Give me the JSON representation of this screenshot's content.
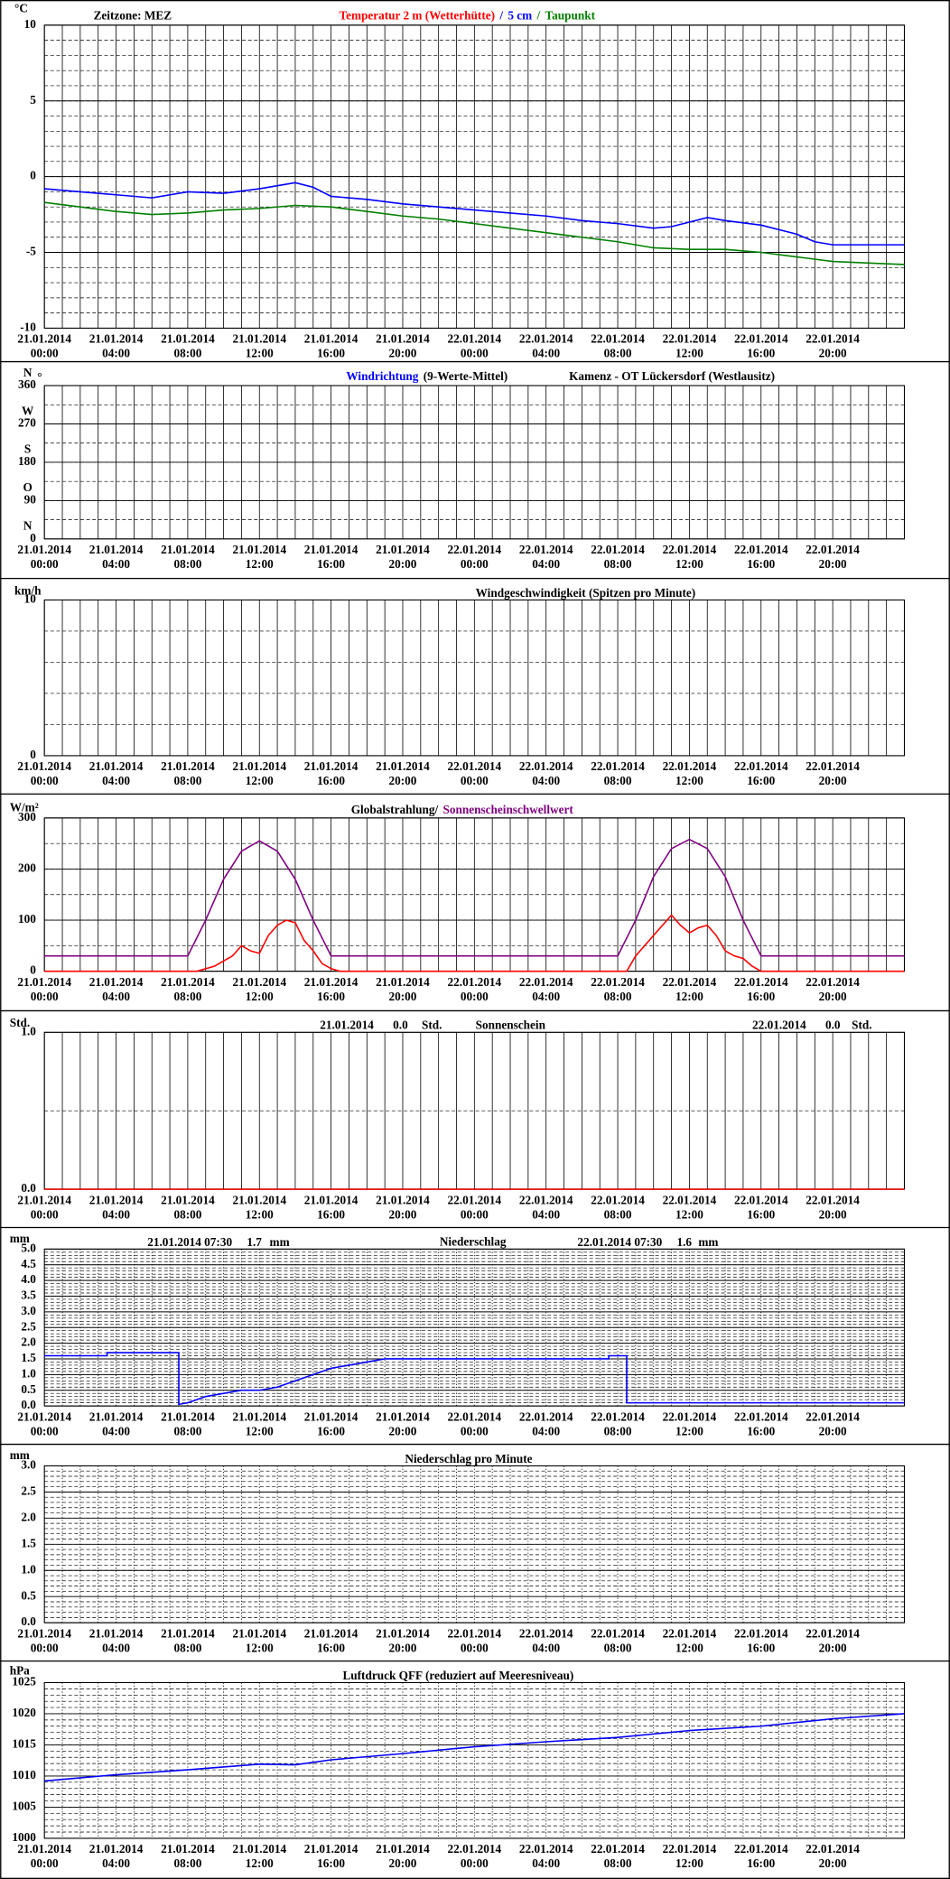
{
  "x_axis": {
    "xlim": [
      0,
      48
    ],
    "grid_step": 1,
    "xticks": [
      {
        "value": 0,
        "label": "00:00"
      },
      {
        "value": 4,
        "label": "04:00"
      },
      {
        "value": 8,
        "label": "08:00"
      },
      {
        "value": 12,
        "label": "12:00"
      },
      {
        "value": 16,
        "label": "16:00"
      },
      {
        "value": 20,
        "label": "20:00"
      },
      {
        "value": 24,
        "label": "00:00"
      },
      {
        "value": 28,
        "label": "04:00"
      },
      {
        "value": 32,
        "label": "08:00"
      },
      {
        "value": 36,
        "label": "12:00"
      },
      {
        "value": 40,
        "label": "16:00"
      },
      {
        "value": 44,
        "label": "20:00"
      }
    ],
    "dates": [
      "21.01.2014",
      "21.01.2014",
      "21.01.2014",
      "21.01.2014",
      "21.01.2014",
      "21.01.2014",
      "22.01.2014",
      "22.01.2014",
      "22.01.2014",
      "22.01.2014",
      "22.01.2014",
      "22.01.2014"
    ]
  },
  "chart_data": [
    {
      "type": "line",
      "unit": "°C",
      "header_note": "Zeitzone: MEZ",
      "title_parts": [
        {
          "text": "Temperatur 2 m (Wetterhütte)",
          "color": "#ff0000"
        },
        {
          "text": "/",
          "color": "#0000ff"
        },
        {
          "text": "5 cm",
          "color": "#0000ff"
        },
        {
          "text": "/",
          "color": "#008000"
        },
        {
          "text": "Taupunkt",
          "color": "#008000"
        }
      ],
      "ylim": [
        -10,
        10
      ],
      "yticks": [
        -10,
        -5,
        0,
        5,
        10
      ],
      "minor_ystep": 1,
      "x_grid": "solid",
      "series": [
        {
          "color": "#0000ff",
          "x": [
            0,
            2,
            4,
            6,
            8,
            10,
            12,
            13,
            14,
            15,
            16,
            18,
            20,
            22,
            24,
            26,
            28,
            30,
            32,
            34,
            35,
            36,
            37,
            38,
            40,
            42,
            43,
            44,
            46,
            48
          ],
          "values": [
            -0.8,
            -1.0,
            -1.2,
            -1.4,
            -1.0,
            -1.1,
            -0.8,
            -0.6,
            -0.4,
            -0.7,
            -1.3,
            -1.5,
            -1.8,
            -2.0,
            -2.2,
            -2.4,
            -2.6,
            -2.9,
            -3.1,
            -3.4,
            -3.3,
            -3.0,
            -2.7,
            -2.9,
            -3.2,
            -3.8,
            -4.3,
            -4.5,
            -4.5,
            -4.5
          ]
        },
        {
          "color": "#008000",
          "x": [
            0,
            2,
            4,
            6,
            8,
            10,
            12,
            14,
            16,
            18,
            20,
            22,
            24,
            26,
            28,
            30,
            32,
            34,
            36,
            38,
            40,
            42,
            44,
            46,
            48
          ],
          "values": [
            -1.7,
            -2.0,
            -2.3,
            -2.5,
            -2.4,
            -2.2,
            -2.1,
            -1.9,
            -2.0,
            -2.3,
            -2.6,
            -2.8,
            -3.1,
            -3.4,
            -3.7,
            -4.0,
            -4.3,
            -4.7,
            -4.8,
            -4.8,
            -5.0,
            -5.3,
            -5.6,
            -5.7,
            -5.8
          ]
        }
      ]
    },
    {
      "type": "line",
      "unit": "°",
      "title_parts": [
        {
          "text": "Windrichtung",
          "color": "#0000ff"
        },
        {
          "text": "(9-Werte-Mittel)",
          "color": "#000000"
        }
      ],
      "location": "Kamenz - OT Lückersdorf (Westlausitz)",
      "ylim": [
        0,
        360
      ],
      "yticks": [
        0,
        90,
        180,
        270,
        360
      ],
      "direction_labels": [
        "N",
        "O",
        "S",
        "W",
        "N"
      ],
      "minor_ystep": 45,
      "x_grid": "solid",
      "series": []
    },
    {
      "type": "line",
      "unit": "km/h",
      "title_parts": [
        {
          "text": "Windgeschwindigkeit (Spitzen pro Minute)",
          "color": "#000000"
        }
      ],
      "ylim": [
        0,
        10
      ],
      "yticks": [
        0,
        10
      ],
      "minor_ystep": 2,
      "x_grid": "solid",
      "series": []
    },
    {
      "type": "line",
      "unit": "W/m²",
      "title_parts": [
        {
          "text": "Globalstrahlung/",
          "color": "#000000"
        },
        {
          "text": "Sonnenscheinschwellwert",
          "color": "#800080"
        }
      ],
      "ylim": [
        0,
        300
      ],
      "yticks": [
        0,
        100,
        200,
        300
      ],
      "minor_ystep": 50,
      "x_grid": "solid",
      "series": [
        {
          "color": "#800080",
          "x": [
            0,
            8,
            9,
            10,
            11,
            12,
            13,
            14,
            15,
            16,
            32,
            33,
            34,
            35,
            36,
            37,
            38,
            39,
            40,
            48
          ],
          "values": [
            30,
            30,
            100,
            180,
            235,
            255,
            235,
            180,
            100,
            30,
            30,
            100,
            185,
            240,
            258,
            240,
            185,
            100,
            30,
            30
          ]
        },
        {
          "color": "#ff0000",
          "x": [
            0,
            8.5,
            9.5,
            10,
            10.5,
            11,
            11.5,
            12,
            12.5,
            13,
            13.5,
            14,
            14.5,
            15,
            15.5,
            16,
            16.5,
            32.5,
            33,
            33.5,
            34,
            34.5,
            35,
            35.5,
            36,
            36.5,
            37,
            37.5,
            38,
            38.5,
            39,
            39.5,
            40,
            48
          ],
          "values": [
            0,
            0,
            10,
            20,
            30,
            50,
            40,
            35,
            70,
            90,
            100,
            95,
            60,
            40,
            15,
            5,
            0,
            0,
            30,
            50,
            70,
            90,
            110,
            90,
            75,
            85,
            90,
            70,
            40,
            30,
            25,
            10,
            0,
            0
          ]
        }
      ]
    },
    {
      "type": "line",
      "unit": "Std.",
      "title_parts": [
        {
          "text": "Sonnenschein",
          "color": "#000000"
        }
      ],
      "summary": [
        {
          "date": "21.01.2014",
          "amount": "0.0",
          "unit": "Std."
        },
        {
          "date": "22.01.2014",
          "amount": "0.0",
          "unit": "Std."
        }
      ],
      "ylim": [
        0,
        1
      ],
      "yticks": [
        {
          "value": 0,
          "label": "0.0"
        },
        {
          "value": 1,
          "label": "1.0"
        }
      ],
      "minor_ystep": 0.5,
      "x_grid": "solid",
      "series": [
        {
          "color": "#e00000",
          "x": [
            0,
            48
          ],
          "values": [
            0,
            0
          ]
        }
      ]
    },
    {
      "type": "line",
      "unit": "mm",
      "title_parts": [
        {
          "text": "Niederschlag",
          "color": "#000000"
        }
      ],
      "summary": [
        {
          "date": "21.01.2014 07:30",
          "amount": "1.7",
          "unit": "mm"
        },
        {
          "date": "22.01.2014 07:30",
          "amount": "1.6",
          "unit": "mm"
        }
      ],
      "ylim": [
        0,
        5
      ],
      "yticks": [
        {
          "value": 0,
          "label": "0.0"
        },
        {
          "value": 0.5,
          "label": "0.5"
        },
        {
          "value": 1,
          "label": "1.0"
        },
        {
          "value": 1.5,
          "label": "1.5"
        },
        {
          "value": 2,
          "label": "2.0"
        },
        {
          "value": 2.5,
          "label": "2.5"
        },
        {
          "value": 3,
          "label": "3.0"
        },
        {
          "value": 3.5,
          "label": "3.5"
        },
        {
          "value": 4,
          "label": "4.0"
        },
        {
          "value": 4.5,
          "label": "4.5"
        },
        {
          "value": 5,
          "label": "5.0"
        }
      ],
      "minor_ystep": 0.1,
      "x_grid": "dotted",
      "series": [
        {
          "color": "#0000ff",
          "x": [
            0,
            3.5,
            3.5,
            7.5,
            7.5,
            8,
            9,
            10,
            11,
            12,
            13,
            14,
            15,
            16,
            17,
            18,
            19,
            31.5,
            31.5,
            32.5,
            32.5,
            48
          ],
          "values": [
            1.6,
            1.6,
            1.7,
            1.7,
            0.05,
            0.1,
            0.3,
            0.4,
            0.5,
            0.5,
            0.6,
            0.8,
            1.0,
            1.2,
            1.3,
            1.4,
            1.5,
            1.5,
            1.6,
            1.6,
            0.1,
            0.1
          ]
        }
      ]
    },
    {
      "type": "line",
      "unit": "mm",
      "title_parts": [
        {
          "text": "Niederschlag pro Minute",
          "color": "#000000"
        }
      ],
      "ylim": [
        0,
        3
      ],
      "yticks": [
        {
          "value": 0,
          "label": "0.0"
        },
        {
          "value": 0.5,
          "label": "0.5"
        },
        {
          "value": 1,
          "label": "1.0"
        },
        {
          "value": 1.5,
          "label": "1.5"
        },
        {
          "value": 2,
          "label": "2.0"
        },
        {
          "value": 2.5,
          "label": "2.5"
        },
        {
          "value": 3,
          "label": "3.0"
        }
      ],
      "minor_ystep": 0.1,
      "x_grid": "dotted",
      "series": []
    },
    {
      "type": "line",
      "unit": "hPa",
      "title_parts": [
        {
          "text": "Luftdruck QFF (reduziert auf Meeresniveau)",
          "color": "#000000"
        }
      ],
      "ylim": [
        1000,
        1025
      ],
      "yticks": [
        1000,
        1005,
        1010,
        1015,
        1020,
        1025
      ],
      "minor_ystep": 1,
      "x_grid": "dotted",
      "series": [
        {
          "color": "#0000ff",
          "x": [
            0,
            4,
            8,
            12,
            14,
            16,
            20,
            24,
            28,
            32,
            36,
            40,
            44,
            48
          ],
          "values": [
            1009.2,
            1010.2,
            1011,
            1011.9,
            1011.8,
            1012.6,
            1013.6,
            1014.7,
            1015.5,
            1016.2,
            1017.3,
            1018,
            1019.2,
            1020
          ]
        }
      ]
    }
  ]
}
